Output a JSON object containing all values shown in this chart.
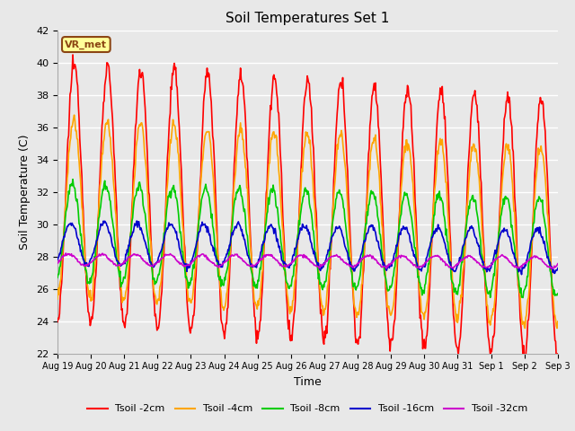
{
  "title": "Soil Temperatures Set 1",
  "xlabel": "Time",
  "ylabel": "Soil Temperature (C)",
  "ylim": [
    22,
    42
  ],
  "yticks": [
    22,
    24,
    26,
    28,
    30,
    32,
    34,
    36,
    38,
    40,
    42
  ],
  "plot_bg_color": "#e8e8e8",
  "grid_color": "#ffffff",
  "annotation_text": "VR_met",
  "annotation_bg": "#ffff99",
  "annotation_border": "#8b4513",
  "series": {
    "Tsoil -2cm": {
      "color": "#ff0000",
      "lw": 1.2
    },
    "Tsoil -4cm": {
      "color": "#ffa500",
      "lw": 1.2
    },
    "Tsoil -8cm": {
      "color": "#00cc00",
      "lw": 1.2
    },
    "Tsoil -16cm": {
      "color": "#0000cc",
      "lw": 1.2
    },
    "Tsoil -32cm": {
      "color": "#cc00cc",
      "lw": 1.2
    }
  },
  "n_days": 15,
  "points_per_day": 48,
  "xtick_labels": [
    "Aug 19",
    "Aug 20",
    "Aug 21",
    "Aug 22",
    "Aug 23",
    "Aug 24",
    "Aug 25",
    "Aug 26",
    "Aug 27",
    "Aug 28",
    "Aug 29",
    "Aug 30",
    "Aug 31",
    "Sep 1",
    "Sep 2",
    "Sep 3"
  ],
  "legend_order": [
    "Tsoil -2cm",
    "Tsoil -4cm",
    "Tsoil -8cm",
    "Tsoil -16cm",
    "Tsoil -32cm"
  ],
  "params": {
    "amp2": 8.0,
    "mean2": 32.0,
    "phase2": 0.0,
    "trend2": -0.15,
    "amp4": 5.5,
    "mean4": 31.0,
    "phase4": 0.08,
    "trend4": -0.12,
    "amp8": 3.0,
    "mean8": 29.5,
    "phase8": 0.35,
    "trend8": -0.06,
    "amp16": 1.3,
    "mean16": 28.8,
    "phase16": 0.65,
    "trend16": -0.03,
    "amp32": 0.35,
    "mean32": 27.8,
    "phase32": 1.1,
    "trend32": -0.01
  }
}
